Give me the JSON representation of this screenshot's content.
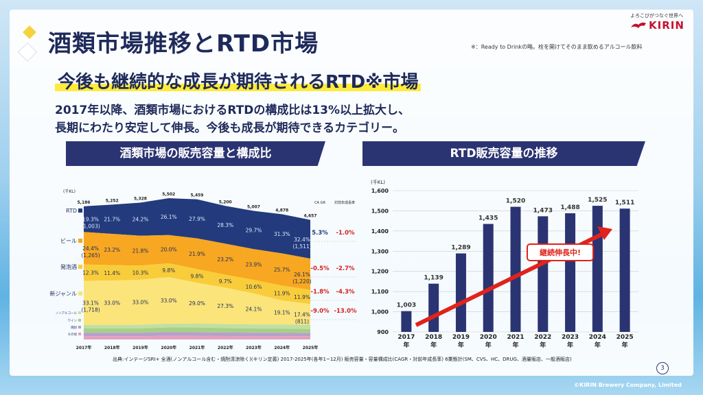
{
  "slide": {
    "title": "酒類市場推移とRTD市場",
    "note": "※：Ready to Drinkの略。栓を開けてそのまま飲めるアルコール飲料",
    "subtitle": "今後も継続的な成長が期待されるRTD※市場",
    "desc_line1": "2017年以降、酒類市場におけるRTDの構成比は13%以上拡大し、",
    "desc_line2": "長期にわたり安定して伸長。今後も成長が期待できるカテゴリー。",
    "logo_tagline": "よろこびがつなぐ世界へ",
    "logo_brand": "KIRIN",
    "left_header": "酒類市場の販売容量と構成比",
    "right_header": "RTD販売容量の推移",
    "source": "出典:インテージSRI+ 全酒(ノンアルコール含む・焼酎清涼除く)(キリン定義) 2017-2025年(各年1~12月) 販売容量・容量構成比(CAGR・対前年成長率) 6業態計(SM、CVS、HC、DRUG、酒量販店、一般酒販店)",
    "copyright": "©KIRIN Brewery Company, Limited",
    "page": "3",
    "colors": {
      "navy": "#2b3472",
      "rtd": "#233b7c",
      "beer": "#f7a721",
      "happoshu": "#f9cd3a",
      "newgenre": "#fbe47a",
      "nonalc": "#bfe0a4",
      "wine": "#a8cf85",
      "shochu": "#b79fcc",
      "other": "#e4a0bf",
      "arrow": "#e0231b"
    }
  },
  "chart_data": [
    {
      "type": "area",
      "title": "酒類市場の販売容量と構成比",
      "unit": "(千KL)",
      "x": [
        "2017年",
        "2018年",
        "2019年",
        "2020年",
        "2021年",
        "2022年",
        "2023年",
        "2024年",
        "2025年"
      ],
      "totals": [
        5186,
        5252,
        5328,
        5502,
        5459,
        5200,
        5007,
        4878,
        4657
      ],
      "total_labels": [
        "5,186",
        "5,252",
        "5,328",
        "5,502",
        "5,459",
        "5,200",
        "5,007",
        "4,878",
        "4,657"
      ],
      "series": [
        {
          "name": "RTD",
          "values": [
            19.3,
            21.7,
            24.2,
            26.1,
            27.9,
            28.3,
            29.7,
            31.3,
            32.4
          ],
          "labels": [
            "19.3%",
            "21.7%",
            "24.2%",
            "26.1%",
            "27.9%",
            "28.3%",
            "29.7%",
            "31.3%",
            "32.4%"
          ],
          "sub_first": "(1,003)",
          "sub_last": "(1,511)",
          "cagr": "5.3%",
          "yoy": "-1.0%"
        },
        {
          "name": "ビール",
          "values": [
            24.4,
            23.2,
            21.8,
            20.0,
            21.9,
            23.2,
            23.9,
            25.7,
            26.1
          ],
          "labels": [
            "24.4%",
            "23.2%",
            "21.8%",
            "20.0%",
            "21.9%",
            "23.2%",
            "23.9%",
            "25.7%",
            "26.1%"
          ],
          "sub_first": "(1,265)",
          "sub_last": "(1,220)",
          "cagr": "-0.5%",
          "yoy": "-2.7%"
        },
        {
          "name": "発泡酒",
          "values": [
            12.3,
            11.4,
            10.3,
            9.8,
            9.8,
            9.7,
            10.6,
            11.9,
            11.9
          ],
          "labels": [
            "12.3%",
            "11.4%",
            "10.3%",
            "9.8%",
            "9.8%",
            "9.7%",
            "10.6%",
            "11.9%",
            "11.9%"
          ],
          "sub_first": "",
          "sub_last": "",
          "cagr": "-1.8%",
          "yoy": "-4.3%"
        },
        {
          "name": "新ジャンル",
          "values": [
            33.1,
            33.0,
            33.0,
            33.0,
            29.0,
            27.3,
            24.1,
            19.1,
            17.4
          ],
          "labels": [
            "33.1%",
            "33.0%",
            "33.0%",
            "33.0%",
            "29.0%",
            "27.3%",
            "24.1%",
            "19.1%",
            "17.4%"
          ],
          "sub_first": "(1,718)",
          "sub_last": "(811)",
          "cagr": "-9.0%",
          "yoy": "-13.0%"
        },
        {
          "name": "ノンアルコール",
          "values": [
            2.6,
            2.6,
            2.6,
            2.6,
            2.9,
            3.0,
            3.2,
            3.3,
            3.5
          ]
        },
        {
          "name": "ワイン",
          "values": [
            3.3,
            3.2,
            3.2,
            3.3,
            3.4,
            3.3,
            3.3,
            3.4,
            3.4
          ]
        },
        {
          "name": "焼酎",
          "values": [
            2.5,
            2.5,
            2.5,
            2.6,
            2.6,
            2.6,
            2.6,
            2.6,
            2.6
          ]
        },
        {
          "name": "その他",
          "values": [
            2.5,
            2.4,
            2.4,
            2.6,
            2.5,
            2.6,
            2.6,
            2.7,
            2.7
          ]
        }
      ],
      "cagr_header": "CA GR",
      "yoy_header": "対前年成長率"
    },
    {
      "type": "bar",
      "title": "RTD販売容量の推移",
      "ylabel": "(千KL)",
      "categories": [
        "2017年",
        "2018年",
        "2019年",
        "2020年",
        "2021年",
        "2022年",
        "2023年",
        "2024年",
        "2025年"
      ],
      "values": [
        1003,
        1139,
        1289,
        1435,
        1520,
        1473,
        1488,
        1525,
        1511
      ],
      "value_labels": [
        "1,003",
        "1,139",
        "1,289",
        "1,435",
        "1,520",
        "1,473",
        "1,488",
        "1,525",
        "1,511"
      ],
      "yticks": [
        "900",
        "1,000",
        "1,100",
        "1,200",
        "1,300",
        "1,400",
        "1,500",
        "1,600"
      ],
      "ylim": [
        900,
        1600
      ],
      "annotation": "継続伸長中!"
    }
  ]
}
